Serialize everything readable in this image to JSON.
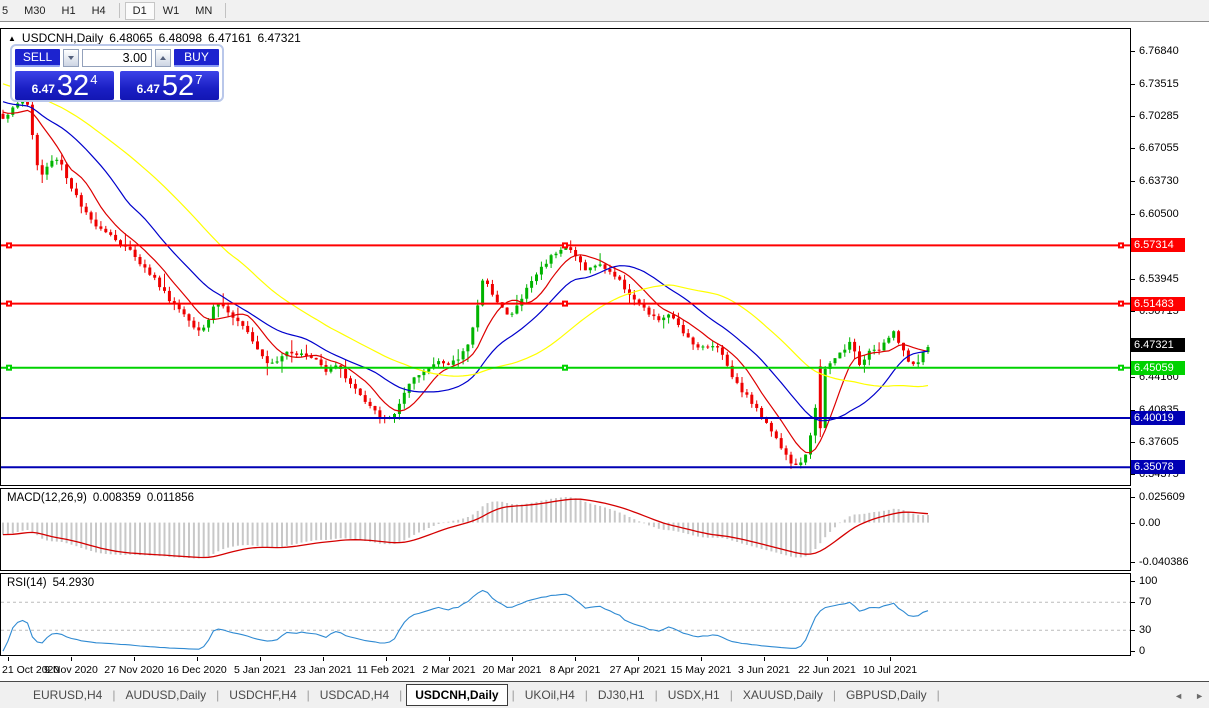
{
  "toolbar": {
    "groups": [
      [
        "5",
        "M30",
        "H1",
        "H4"
      ],
      [
        "D1",
        "W1",
        "MN"
      ]
    ],
    "active": "D1"
  },
  "chart_header": {
    "collapse_icon": "▲",
    "symbol": "USDCNH,Daily",
    "open": "6.48065",
    "high": "6.48098",
    "low": "6.47161",
    "close": "6.47321"
  },
  "trade_panel": {
    "sell_label": "SELL",
    "buy_label": "BUY",
    "volume": "3.00",
    "sell_price_prefix": "6.47",
    "sell_price_big": "32",
    "sell_price_sup": "4",
    "buy_price_prefix": "6.47",
    "buy_price_big": "52",
    "buy_price_sup": "7"
  },
  "indicators": {
    "macd": {
      "title": "MACD(12,26,9)",
      "value": "0.008359",
      "signal": "0.011856"
    },
    "rsi": {
      "title": "RSI(14)",
      "value": "54.2930"
    }
  },
  "price_axis": {
    "ticks": [
      "6.76840",
      "6.73515",
      "6.70285",
      "6.67055",
      "6.63730",
      "6.60500",
      "6.53945",
      "6.50715",
      "6.44160",
      "6.40835",
      "6.37605",
      "6.34375"
    ]
  },
  "tabs": {
    "items": [
      "EURUSD,H4",
      "AUDUSD,Daily",
      "USDCHF,H4",
      "USDCAD,H4",
      "USDCNH,Daily",
      "UKOil,H4",
      "DJ30,H1",
      "USDX,H1",
      "XAUUSD,Daily",
      "GBPUSD,Daily"
    ],
    "active": "USDCNH,Daily",
    "nav_left": "◄",
    "nav_right": "►"
  },
  "chart_data": {
    "type": "candlestick",
    "symbol": "USDCNH",
    "timeframe": "Daily",
    "ohlc": {
      "open": 6.48065,
      "high": 6.48098,
      "low": 6.47161,
      "close": 6.47321
    },
    "ylim": [
      6.333,
      6.79
    ],
    "candle_count": 190,
    "first_candle_x": 2,
    "last_candle_x": 927,
    "up_color": "#00b400",
    "down_color": "#ee0000",
    "price_path_anchors": [
      [
        0,
        6.7
      ],
      [
        10,
        6.708
      ],
      [
        20,
        6.718
      ],
      [
        28,
        6.714
      ],
      [
        34,
        6.66
      ],
      [
        40,
        6.642
      ],
      [
        48,
        6.655
      ],
      [
        58,
        6.662
      ],
      [
        66,
        6.64
      ],
      [
        74,
        6.625
      ],
      [
        82,
        6.608
      ],
      [
        92,
        6.596
      ],
      [
        102,
        6.59
      ],
      [
        112,
        6.582
      ],
      [
        122,
        6.572
      ],
      [
        132,
        6.566
      ],
      [
        142,
        6.552
      ],
      [
        152,
        6.542
      ],
      [
        162,
        6.528
      ],
      [
        172,
        6.515
      ],
      [
        182,
        6.506
      ],
      [
        192,
        6.494
      ],
      [
        200,
        6.488
      ],
      [
        208,
        6.5
      ],
      [
        215,
        6.518
      ],
      [
        222,
        6.512
      ],
      [
        230,
        6.503
      ],
      [
        240,
        6.492
      ],
      [
        250,
        6.482
      ],
      [
        258,
        6.468
      ],
      [
        266,
        6.457
      ],
      [
        276,
        6.458
      ],
      [
        286,
        6.468
      ],
      [
        296,
        6.465
      ],
      [
        306,
        6.462
      ],
      [
        316,
        6.458
      ],
      [
        324,
        6.448
      ],
      [
        334,
        6.455
      ],
      [
        344,
        6.442
      ],
      [
        354,
        6.43
      ],
      [
        364,
        6.416
      ],
      [
        374,
        6.406
      ],
      [
        384,
        6.398
      ],
      [
        392,
        6.402
      ],
      [
        400,
        6.418
      ],
      [
        410,
        6.436
      ],
      [
        420,
        6.444
      ],
      [
        430,
        6.452
      ],
      [
        438,
        6.46
      ],
      [
        446,
        6.452
      ],
      [
        456,
        6.458
      ],
      [
        466,
        6.472
      ],
      [
        474,
        6.5
      ],
      [
        482,
        6.538
      ],
      [
        490,
        6.528
      ],
      [
        498,
        6.516
      ],
      [
        508,
        6.5
      ],
      [
        518,
        6.515
      ],
      [
        528,
        6.534
      ],
      [
        538,
        6.548
      ],
      [
        548,
        6.56
      ],
      [
        558,
        6.57
      ],
      [
        566,
        6.572
      ],
      [
        576,
        6.56
      ],
      [
        586,
        6.548
      ],
      [
        596,
        6.554
      ],
      [
        606,
        6.55
      ],
      [
        616,
        6.54
      ],
      [
        626,
        6.528
      ],
      [
        636,
        6.516
      ],
      [
        646,
        6.506
      ],
      [
        656,
        6.498
      ],
      [
        666,
        6.503
      ],
      [
        676,
        6.496
      ],
      [
        686,
        6.482
      ],
      [
        696,
        6.472
      ],
      [
        706,
        6.47
      ],
      [
        716,
        6.474
      ],
      [
        726,
        6.454
      ],
      [
        736,
        6.434
      ],
      [
        746,
        6.422
      ],
      [
        756,
        6.408
      ],
      [
        766,
        6.396
      ],
      [
        776,
        6.378
      ],
      [
        786,
        6.36
      ],
      [
        794,
        6.351
      ],
      [
        800,
        6.354
      ],
      [
        806,
        6.368
      ],
      [
        812,
        6.396
      ],
      [
        818,
        6.428
      ],
      [
        824,
        6.448
      ],
      [
        832,
        6.458
      ],
      [
        840,
        6.466
      ],
      [
        848,
        6.476
      ],
      [
        854,
        6.464
      ],
      [
        860,
        6.452
      ],
      [
        868,
        6.47
      ],
      [
        876,
        6.468
      ],
      [
        884,
        6.476
      ],
      [
        892,
        6.486
      ],
      [
        900,
        6.472
      ],
      [
        908,
        6.458
      ],
      [
        914,
        6.45
      ],
      [
        920,
        6.464
      ],
      [
        927,
        6.472
      ]
    ],
    "special_candles": [
      {
        "i": 167,
        "o": 6.452,
        "h": 6.459,
        "l": 6.381,
        "c": 6.39
      }
    ],
    "moving_averages": [
      {
        "period": 8,
        "color": "#dd0000"
      },
      {
        "period": 20,
        "color": "#0000cc"
      },
      {
        "period": 40,
        "color": "#ffff00"
      }
    ],
    "ma_history": 60,
    "ma_history_slope": 0.0018,
    "hlines": [
      {
        "price": 6.57314,
        "label": "6.57314",
        "color": "#ff0000",
        "handles": true
      },
      {
        "price": 6.51483,
        "label": "6.51483",
        "color": "#ff0000",
        "handles": true
      },
      {
        "price": 6.45059,
        "label": "6.45059",
        "color": "#00d200",
        "handles": true
      },
      {
        "price": 6.40019,
        "label": "6.40019",
        "color": "#0000b4",
        "handles": false
      },
      {
        "price": 6.35078,
        "label": "6.35078",
        "color": "#0000b4",
        "handles": false
      }
    ],
    "current_price_marker": {
      "price": 6.47321,
      "label": "6.47321",
      "color": "#000000"
    },
    "macd": {
      "params": "12,26,9",
      "value": 0.008359,
      "signal": 0.011856,
      "ylim": [
        -0.048,
        0.034
      ],
      "bar_color": "#c8c8c8",
      "signal_color": "#d40000",
      "axis_labels": [
        {
          "v": 0.025609,
          "t": "0.025609"
        },
        {
          "v": 0,
          "t": "0.00"
        },
        {
          "v": -0.040386,
          "t": "-0.040386"
        }
      ]
    },
    "rsi": {
      "period": 14,
      "value": 54.293,
      "ylim": [
        -5,
        110
      ],
      "line_color": "#2f8ad2",
      "levels": [
        70,
        30
      ],
      "axis_labels": [
        {
          "v": 100,
          "t": "100"
        },
        {
          "v": 70,
          "t": "70"
        },
        {
          "v": 30,
          "t": "30"
        },
        {
          "v": 0,
          "t": "0"
        }
      ]
    },
    "x_dates": [
      "21 Oct 2020",
      "9 Nov 2020",
      "27 Nov 2020",
      "16 Dec 2020",
      "5 Jan 2021",
      "23 Jan 2021",
      "11 Feb 2021",
      "2 Mar 2021",
      "20 Mar 2021",
      "8 Apr 2021",
      "27 Apr 2021",
      "15 May 2021",
      "3 Jun 2021",
      "22 Jun 2021",
      "10 Jul 2021"
    ],
    "date_x_start": 8,
    "date_x_step": 63
  }
}
